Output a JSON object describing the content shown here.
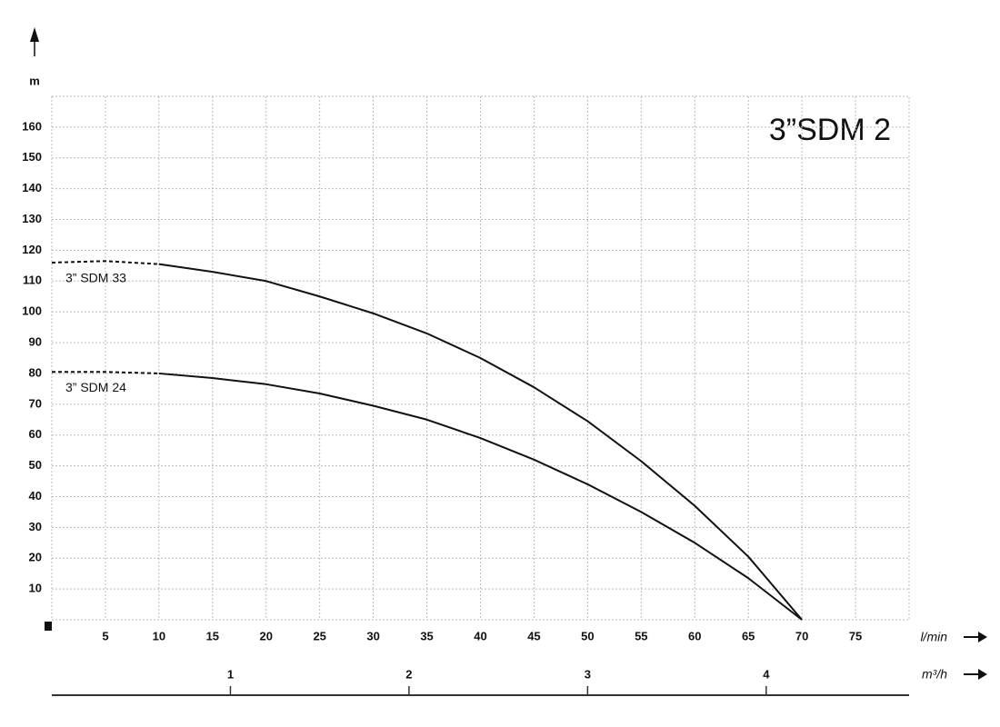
{
  "chart_data": {
    "type": "line",
    "title": "3”SDM 2",
    "y_label": "m",
    "x_label": "l/min",
    "x2_label": "m³/h",
    "x": [
      0,
      5,
      10,
      15,
      20,
      25,
      30,
      35,
      40,
      45,
      50,
      55,
      60,
      65,
      70
    ],
    "series": [
      {
        "name": "3” SDM 33",
        "color": "#111111",
        "dashed_below_x": 10,
        "values": [
          116,
          116.5,
          115.5,
          113,
          110,
          105,
          99.5,
          93,
          85,
          75.5,
          64.5,
          51.5,
          37,
          20.5,
          0
        ]
      },
      {
        "name": "3” SDM 24",
        "color": "#111111",
        "dashed_below_x": 10,
        "values": [
          80.5,
          80.5,
          80,
          78.5,
          76.5,
          73.5,
          69.5,
          65,
          59,
          52,
          44,
          35,
          25,
          13.5,
          0
        ]
      }
    ],
    "xlim": [
      0,
      80
    ],
    "xticks": [
      5,
      10,
      15,
      20,
      25,
      30,
      35,
      40,
      45,
      50,
      55,
      60,
      65,
      70,
      75
    ],
    "x2lim": [
      0,
      4.8
    ],
    "x2ticks": [
      1,
      2,
      3,
      4
    ],
    "ylim": [
      0,
      170
    ],
    "yticks": [
      10,
      20,
      30,
      40,
      50,
      60,
      70,
      80,
      90,
      100,
      110,
      120,
      130,
      140,
      150,
      160
    ],
    "grid": true
  }
}
